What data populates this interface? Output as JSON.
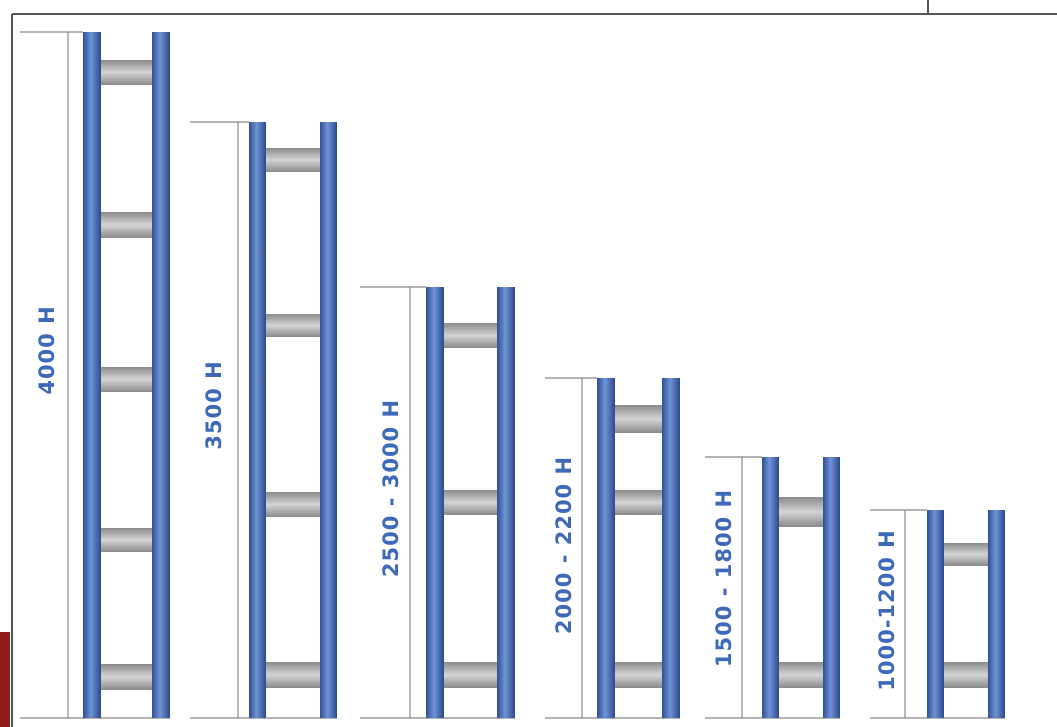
{
  "ladders": [
    {
      "label": "4000 H"
    },
    {
      "label": "3500 H"
    },
    {
      "label": "2500 - 3000 H"
    },
    {
      "label": "2000 - 2200 H"
    },
    {
      "label": "1500 - 1800 H"
    },
    {
      "label": "1000-1200 H"
    }
  ]
}
